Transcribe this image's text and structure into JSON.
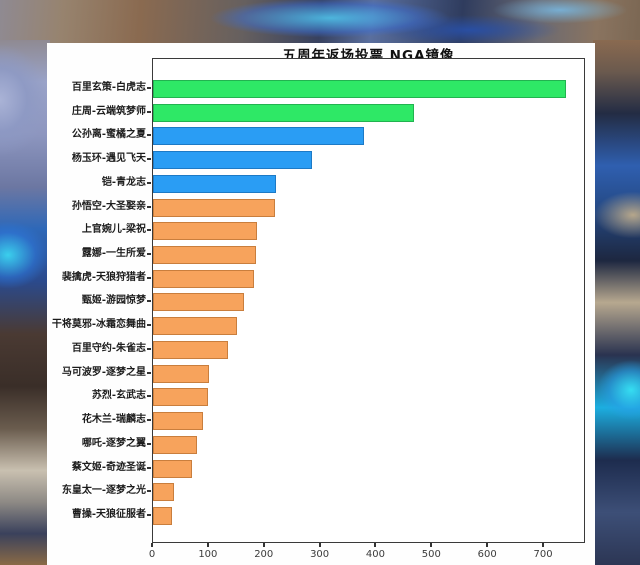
{
  "chart_data": {
    "type": "bar",
    "orientation": "horizontal",
    "title": "五周年返场投票 NGA镜像",
    "xlabel": "",
    "ylabel": "",
    "xlim": [
      0,
      775
    ],
    "x_ticks": [
      0,
      100,
      200,
      300,
      400,
      500,
      600,
      700
    ],
    "grid": false,
    "legend": "none",
    "categories": [
      "百里玄策-白虎志",
      "庄周-云端筑梦师",
      "公孙离-蜜橘之夏",
      "杨玉环-遇见飞天",
      "铠-青龙志",
      "孙悟空-大圣娶亲",
      "上官婉儿-梁祝",
      "露娜-一生所爱",
      "裴擒虎-天狼狩猎者",
      "甄姬-游园惊梦",
      "干将莫邪-冰霜恋舞曲",
      "百里守约-朱雀志",
      "马可波罗-逐梦之星",
      "苏烈-玄武志",
      "花木兰-瑞麟志",
      "哪吒-逐梦之翼",
      "蔡文姬-奇迹圣诞",
      "东皇太一-逐梦之光",
      "曹操-天狼征服者"
    ],
    "values": [
      740,
      468,
      377,
      285,
      220,
      218,
      186,
      184,
      180,
      163,
      151,
      135,
      100,
      98,
      90,
      79,
      70,
      38,
      34
    ],
    "bar_colors": [
      "green",
      "green",
      "blue",
      "blue",
      "blue",
      "orange",
      "orange",
      "orange",
      "orange",
      "orange",
      "orange",
      "orange",
      "orange",
      "orange",
      "orange",
      "orange",
      "orange",
      "orange",
      "orange"
    ],
    "palette": {
      "green": "#2ee866",
      "blue": "#2a9df4",
      "orange": "#f7a35c"
    },
    "border_palette": {
      "green": "#22b350",
      "blue": "#1d7ac6",
      "orange": "#c97e3d"
    }
  }
}
